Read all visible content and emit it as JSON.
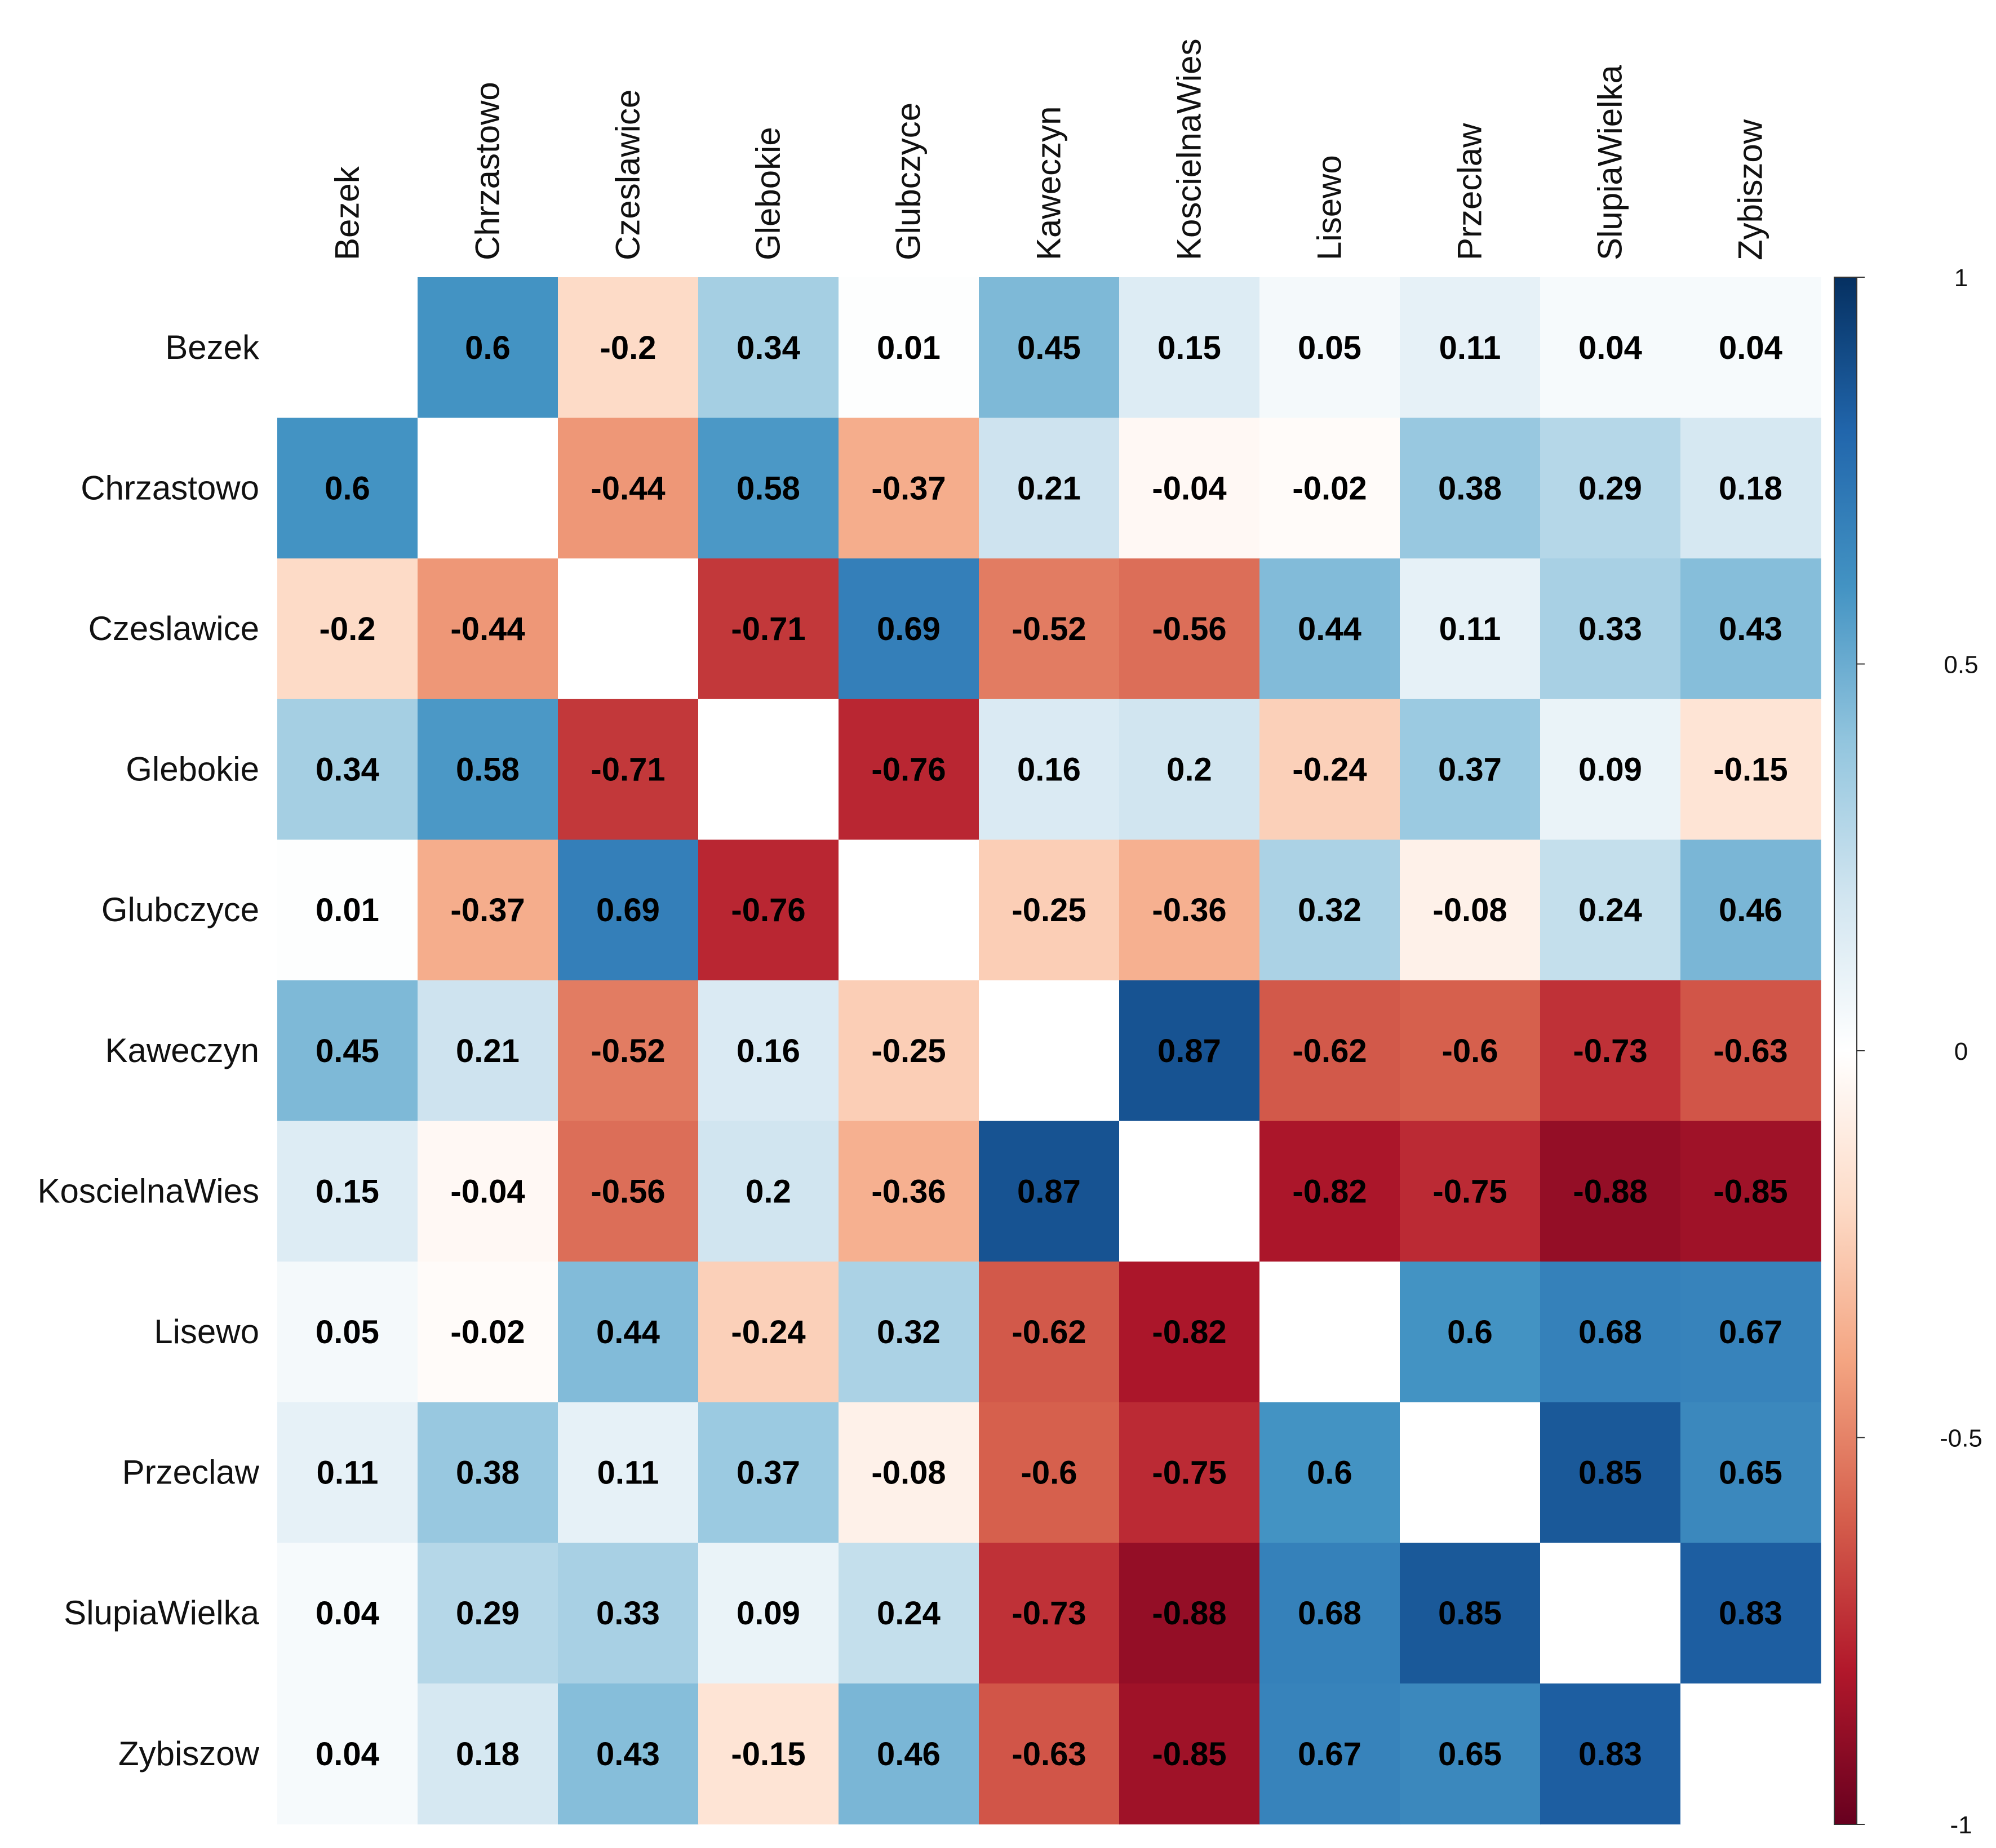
{
  "chart_data": {
    "type": "heatmap",
    "title": "",
    "labels": [
      "Bezek",
      "Chrzastowo",
      "Czeslawice",
      "Glebokie",
      "Glubczyce",
      "Kaweczyn",
      "KoscielnaWies",
      "Lisewo",
      "Przeclaw",
      "SlupiaWielka",
      "Zybiszow"
    ],
    "matrix": [
      [
        null,
        0.6,
        -0.2,
        0.34,
        0.01,
        0.45,
        0.15,
        0.05,
        0.11,
        0.04,
        0.04
      ],
      [
        0.6,
        null,
        -0.44,
        0.58,
        -0.37,
        0.21,
        -0.04,
        -0.02,
        0.38,
        0.29,
        0.18
      ],
      [
        -0.2,
        -0.44,
        null,
        -0.71,
        0.69,
        -0.52,
        -0.56,
        0.44,
        0.11,
        0.33,
        0.43
      ],
      [
        0.34,
        0.58,
        -0.71,
        null,
        -0.76,
        0.16,
        0.2,
        -0.24,
        0.37,
        0.09,
        -0.15
      ],
      [
        0.01,
        -0.37,
        0.69,
        -0.76,
        null,
        -0.25,
        -0.36,
        0.32,
        -0.08,
        0.24,
        0.46
      ],
      [
        0.45,
        0.21,
        -0.52,
        0.16,
        -0.25,
        null,
        0.87,
        -0.62,
        -0.6,
        -0.73,
        -0.63
      ],
      [
        0.15,
        -0.04,
        -0.56,
        0.2,
        -0.36,
        0.87,
        null,
        -0.82,
        -0.75,
        -0.88,
        -0.85
      ],
      [
        0.05,
        -0.02,
        0.44,
        -0.24,
        0.32,
        -0.62,
        -0.82,
        null,
        0.6,
        0.68,
        0.67
      ],
      [
        0.11,
        0.38,
        0.11,
        0.37,
        -0.08,
        -0.6,
        -0.75,
        0.6,
        null,
        0.85,
        0.65
      ],
      [
        0.04,
        0.29,
        0.33,
        0.09,
        0.24,
        -0.73,
        -0.88,
        0.68,
        0.85,
        null,
        0.83
      ],
      [
        0.04,
        0.18,
        0.43,
        -0.15,
        0.46,
        -0.63,
        -0.85,
        0.67,
        0.65,
        0.83,
        null
      ]
    ],
    "color_scale": {
      "min": -1,
      "max": 1,
      "ticks": [
        "1",
        "0.5",
        "0",
        "-0.5",
        "-1"
      ],
      "colors": [
        "#67001f",
        "#b2182b",
        "#d6604d",
        "#f4a582",
        "#fddbc7",
        "#ffffff",
        "#d1e5f0",
        "#92c5de",
        "#4393c3",
        "#2166ac",
        "#053061"
      ]
    },
    "xlabel": "",
    "ylabel": "",
    "legend": "right"
  }
}
